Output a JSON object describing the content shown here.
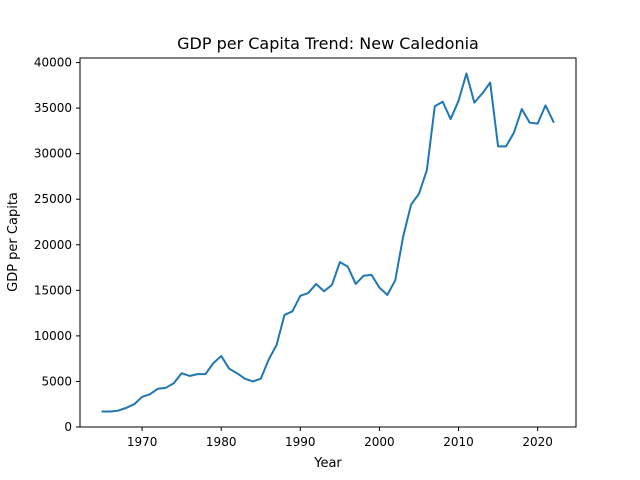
{
  "chart_data": {
    "type": "line",
    "title": "GDP per Capita Trend: New Caledonia",
    "xlabel": "Year",
    "ylabel": "GDP per Capita",
    "xlim": [
      1962.15,
      2024.85
    ],
    "ylim": [
      0,
      40500
    ],
    "xticks": [
      1970,
      1980,
      1990,
      2000,
      2010,
      2020
    ],
    "yticks": [
      0,
      5000,
      10000,
      15000,
      20000,
      25000,
      30000,
      35000,
      40000
    ],
    "grid": false,
    "legend": "none",
    "series": [
      {
        "color": "#1f77b4",
        "x": [
          1965,
          1966,
          1967,
          1968,
          1969,
          1970,
          1971,
          1972,
          1973,
          1974,
          1975,
          1976,
          1977,
          1978,
          1979,
          1980,
          1981,
          1982,
          1983,
          1984,
          1985,
          1986,
          1987,
          1988,
          1989,
          1990,
          1991,
          1992,
          1993,
          1994,
          1995,
          1996,
          1997,
          1998,
          1999,
          2000,
          2001,
          2002,
          2003,
          2004,
          2005,
          2006,
          2007,
          2008,
          2009,
          2010,
          2011,
          2012,
          2013,
          2014,
          2015,
          2016,
          2017,
          2018,
          2019,
          2020,
          2021,
          2022
        ],
        "y": [
          1700,
          1700,
          1800,
          2100,
          2500,
          3300,
          3600,
          4200,
          4300,
          4800,
          5900,
          5600,
          5800,
          5800,
          7000,
          7800,
          6400,
          5900,
          5300,
          5000,
          5300,
          7400,
          9000,
          12300,
          12700,
          14400,
          14700,
          15700,
          14900,
          15600,
          18100,
          17600,
          15700,
          16600,
          16700,
          15300,
          14500,
          16100,
          20900,
          24400,
          25600,
          28200,
          35200,
          35700,
          33800,
          35800,
          38800,
          35600,
          36600,
          37800,
          30800,
          30800,
          32300,
          34900,
          33400,
          33300,
          35300,
          33500
        ]
      }
    ]
  }
}
